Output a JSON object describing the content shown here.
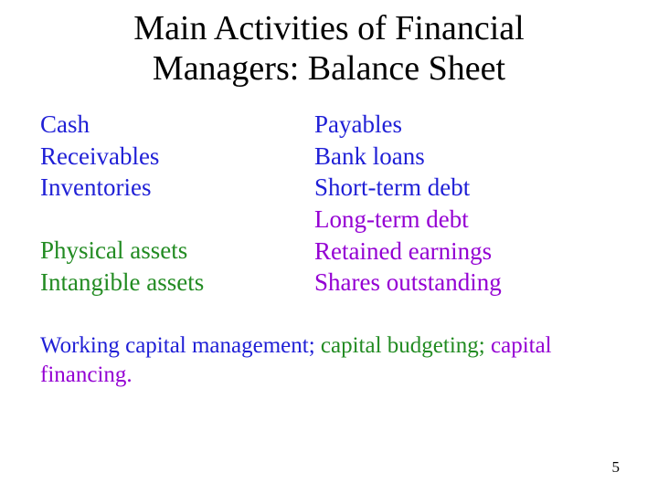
{
  "colors": {
    "black": "#000000",
    "blue": "#1f1fd6",
    "green": "#228b22",
    "violet": "#9400d3"
  },
  "title": {
    "line1": "Main Activities of Financial",
    "line2": "Managers: Balance Sheet"
  },
  "left": {
    "group1": [
      {
        "text": "Cash",
        "color": "#1f1fd6"
      },
      {
        "text": "Receivables",
        "color": "#1f1fd6"
      },
      {
        "text": "Inventories",
        "color": "#1f1fd6"
      }
    ],
    "group2": [
      {
        "text": "Physical assets",
        "color": "#228b22"
      },
      {
        "text": "Intangible assets",
        "color": "#228b22"
      }
    ]
  },
  "right": {
    "items": [
      {
        "text": "Payables",
        "color": "#1f1fd6"
      },
      {
        "text": "Bank loans",
        "color": "#1f1fd6"
      },
      {
        "text": "Short-term debt",
        "color": "#1f1fd6"
      },
      {
        "text": "Long-term debt",
        "color": "#9400d3"
      },
      {
        "text": "Retained earnings",
        "color": "#9400d3"
      },
      {
        "text": "Shares outstanding",
        "color": "#9400d3"
      }
    ]
  },
  "footer": {
    "seg1": "Working capital management",
    "seg2": "; ",
    "seg3": "capital budgeting",
    "seg4": "; ",
    "seg5": "capital financing",
    "seg6": "."
  },
  "pagenum": "5"
}
